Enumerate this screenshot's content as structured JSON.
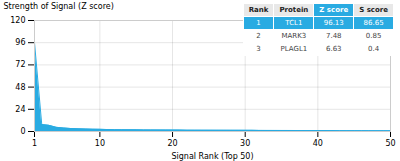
{
  "chart_data": {
    "type": "area",
    "xlabel": "Signal Rank (Top 50)",
    "ylabel": "Strength of Signal (Z score)",
    "x": [
      1,
      2,
      3,
      4,
      5,
      6,
      7,
      8,
      9,
      10,
      11,
      12,
      13,
      14,
      15,
      16,
      17,
      18,
      19,
      20,
      21,
      22,
      23,
      24,
      25,
      26,
      27,
      28,
      29,
      30,
      31,
      32,
      33,
      34,
      35,
      36,
      37,
      38,
      39,
      40,
      41,
      42,
      43,
      44,
      45,
      46,
      47,
      48,
      49,
      50
    ],
    "values": [
      96.13,
      7.48,
      6.63,
      4.5,
      3.8,
      3.2,
      2.9,
      2.7,
      2.5,
      2.3,
      2.1,
      2.0,
      1.9,
      1.85,
      1.8,
      1.75,
      1.7,
      1.65,
      1.6,
      1.55,
      1.5,
      1.45,
      1.42,
      1.4,
      1.38,
      1.35,
      1.32,
      1.3,
      1.28,
      1.25,
      1.22,
      1.2,
      1.18,
      1.15,
      1.12,
      1.1,
      1.08,
      1.05,
      1.03,
      1.0,
      0.98,
      0.96,
      0.94,
      0.92,
      0.9,
      0.88,
      0.86,
      0.84,
      0.82,
      0.8
    ],
    "color": "#29ABE2",
    "xlim": [
      1,
      50
    ],
    "xticks": [
      1,
      10,
      20,
      30,
      40,
      50
    ],
    "ylim": [
      0,
      120
    ],
    "yticks": [
      0,
      24,
      48,
      72,
      96,
      120
    ],
    "grid": true,
    "table": {
      "headers": [
        "Rank",
        "Protein",
        "Z score",
        "S score"
      ],
      "rows": [
        [
          "1",
          "TCL1",
          "96.13",
          "86.65"
        ],
        [
          "2",
          "MARK3",
          "7.48",
          "0.85"
        ],
        [
          "3",
          "PLAGL1",
          "6.63",
          "0.4"
        ]
      ]
    }
  }
}
